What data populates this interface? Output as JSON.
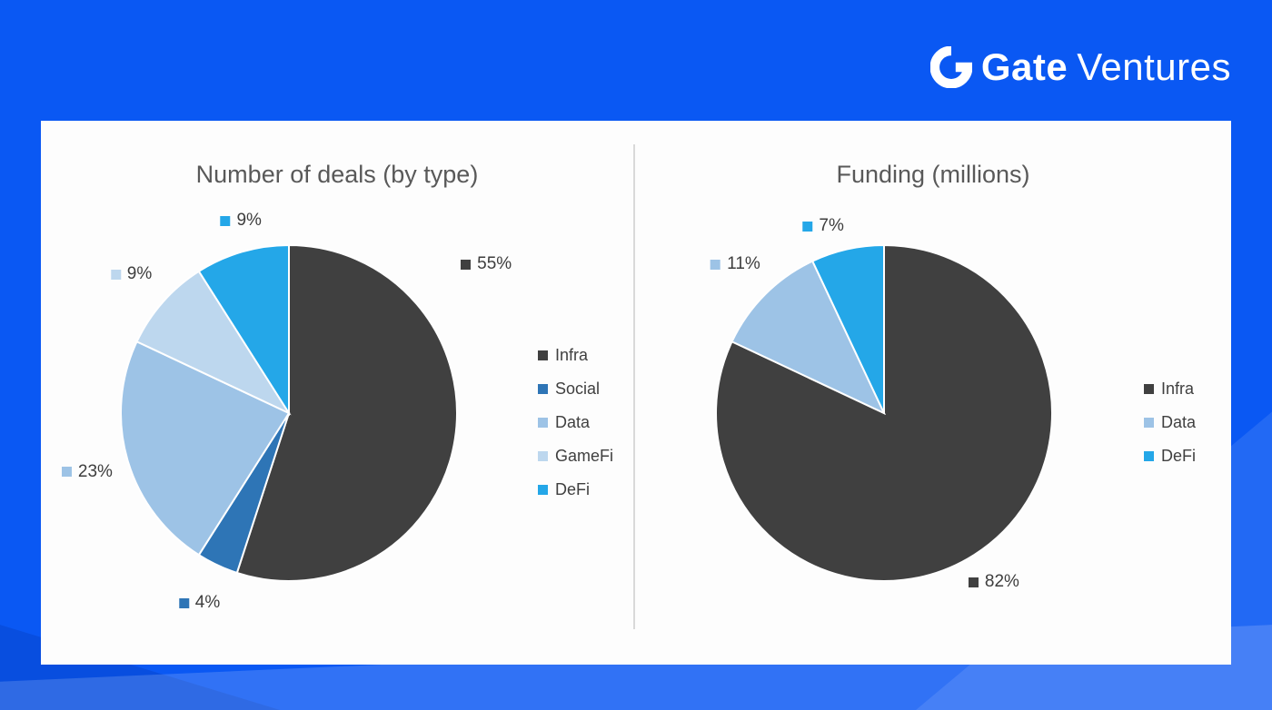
{
  "logo": {
    "brand": "Gate",
    "suffix": "Ventures"
  },
  "colors": {
    "background": "#0a58f3",
    "infra": "#404040",
    "social": "#2e75b6",
    "data": "#9dc3e6",
    "gamefi": "#bdd7ee",
    "defi": "#24a7e8"
  },
  "chart_data": [
    {
      "type": "pie",
      "title": "Number of deals (by type)",
      "categories": [
        "Infra",
        "Social",
        "Data",
        "GameFi",
        "DeFi"
      ],
      "values": [
        55,
        4,
        23,
        9,
        9
      ],
      "labels": [
        "55%",
        "4%",
        "23%",
        "9%",
        "9%"
      ],
      "colors": [
        "#404040",
        "#2e75b6",
        "#9dc3e6",
        "#bdd7ee",
        "#24a7e8"
      ],
      "legend_position": "right",
      "start_angle_deg": 0,
      "direction": "clockwise"
    },
    {
      "type": "pie",
      "title": "Funding (millions)",
      "categories": [
        "Infra",
        "Data",
        "DeFi"
      ],
      "values": [
        82,
        11,
        7
      ],
      "labels": [
        "82%",
        "11%",
        "7%"
      ],
      "colors": [
        "#404040",
        "#9dc3e6",
        "#24a7e8"
      ],
      "legend_position": "right",
      "start_angle_deg": 0,
      "direction": "clockwise"
    }
  ]
}
